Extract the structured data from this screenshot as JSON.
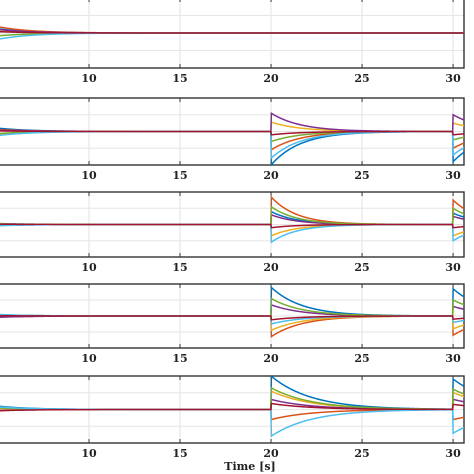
{
  "chart_data": {
    "type": "line",
    "xlabel": "Time [s]",
    "xlim": [
      5,
      30.6
    ],
    "xticks": [
      10,
      15,
      20,
      25,
      30
    ],
    "grid": true,
    "colors": [
      "#0072BD",
      "#D95319",
      "#EDB120",
      "#7E2F8E",
      "#77AC30",
      "#4DBEEE",
      "#A2142F"
    ],
    "panels": [
      {
        "ylim": [
          -1,
          1
        ],
        "ref": 0,
        "events": [
          {
            "t": 5,
            "tau": 1.8,
            "amps": [
              0.12,
              0.18,
              0.05,
              0.1,
              -0.08,
              -0.18,
              0.04
            ]
          }
        ]
      },
      {
        "ylim": [
          -1,
          1
        ],
        "ref": 0,
        "events": [
          {
            "t": 5,
            "tau": 1.8,
            "amps": [
              0.1,
              0.06,
              -0.08,
              0.04,
              -0.06,
              -0.12,
              0.02
            ]
          },
          {
            "t": 20,
            "tau": 1.6,
            "amps": [
              -1.0,
              -0.55,
              0.28,
              0.55,
              -0.3,
              -0.8,
              -0.1
            ]
          },
          {
            "t": 30,
            "tau": 1.6,
            "amps": [
              -0.9,
              -0.5,
              0.25,
              0.5,
              -0.25,
              -0.7,
              -0.1
            ]
          }
        ]
      },
      {
        "ylim": [
          -1,
          1
        ],
        "ref": 0,
        "events": [
          {
            "t": 5,
            "tau": 1.8,
            "amps": [
              0.03,
              -0.03,
              0.02,
              -0.02,
              0.01,
              -0.04,
              0.01
            ]
          },
          {
            "t": 20,
            "tau": 1.4,
            "amps": [
              0.4,
              0.85,
              -0.35,
              0.3,
              0.55,
              -0.55,
              -0.1
            ]
          },
          {
            "t": 30,
            "tau": 1.4,
            "amps": [
              0.35,
              0.75,
              -0.35,
              0.25,
              0.5,
              -0.5,
              -0.1
            ]
          }
        ]
      },
      {
        "ylim": [
          -1,
          1
        ],
        "ref": 0,
        "events": [
          {
            "t": 5,
            "tau": 1.8,
            "amps": [
              0.04,
              -0.03,
              0.03,
              -0.04,
              0.02,
              0.05,
              0.01
            ]
          },
          {
            "t": 20,
            "tau": 1.7,
            "amps": [
              0.9,
              -0.65,
              -0.45,
              0.35,
              0.55,
              -0.25,
              -0.12
            ]
          },
          {
            "t": 30,
            "tau": 1.7,
            "amps": [
              0.85,
              -0.6,
              -0.4,
              0.3,
              0.5,
              -0.2,
              -0.1
            ]
          }
        ]
      },
      {
        "ylim": [
          -1,
          1
        ],
        "ref": 0,
        "events": [
          {
            "t": 5,
            "tau": 1.8,
            "amps": [
              0.1,
              0.06,
              0.03,
              -0.03,
              0.05,
              0.08,
              -0.04
            ]
          },
          {
            "t": 20,
            "tau": 2.2,
            "amps": [
              1.0,
              -0.3,
              0.55,
              0.3,
              0.65,
              -0.8,
              0.18
            ]
          },
          {
            "t": 30,
            "tau": 2.2,
            "amps": [
              0.9,
              -0.3,
              0.5,
              0.3,
              0.6,
              -0.7,
              0.15
            ]
          }
        ]
      }
    ]
  }
}
